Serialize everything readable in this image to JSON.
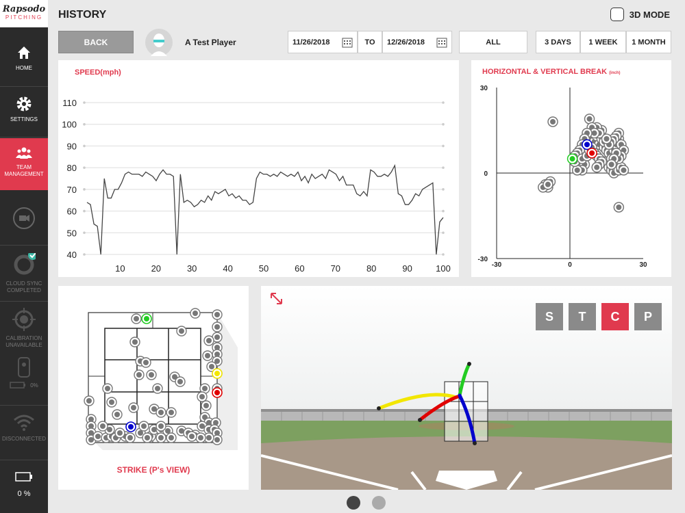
{
  "sidebar": {
    "logo_brand": "Rapsodo",
    "logo_sub": "PITCHING",
    "items": [
      {
        "label": "HOME"
      },
      {
        "label": "SETTINGS"
      },
      {
        "label": "TEAM MANAGEMENT"
      },
      {
        "label": ""
      },
      {
        "label": "CLOUD SYNC COMPLETED"
      },
      {
        "label": "CALIBRATION UNAVAILABLE"
      },
      {
        "label": "0%"
      },
      {
        "label": "DISCONNECTED"
      },
      {
        "label": "0 %"
      }
    ]
  },
  "header": {
    "title": "HISTORY",
    "mode_label": "3D MODE"
  },
  "controls": {
    "back": "BACK",
    "player": "A Test Player",
    "date_from": "11/26/2018",
    "to": "TO",
    "date_to": "12/26/2018",
    "all": "ALL",
    "range_3d": "3 DAYS",
    "range_1w": "1 WEEK",
    "range_1m": "1 MONTH"
  },
  "speed_panel": {
    "title": "SPEED(mph)"
  },
  "break_panel": {
    "title": "HORIZONTAL & VERTICAL BREAK",
    "title_unit": "(inch)"
  },
  "strike_panel": {
    "title": "STRIKE (P's VIEW)"
  },
  "view_buttons": {
    "s": "S",
    "t": "T",
    "c": "C",
    "p": "P"
  },
  "colors": {
    "accent": "#e03a4e",
    "yellow": "#f2e600",
    "red": "#e00000",
    "green": "#22cc22",
    "blue": "#0000cc"
  },
  "chart_data": [
    {
      "type": "line",
      "title": "SPEED(mph)",
      "ylim": [
        40,
        110
      ],
      "xlim": [
        0,
        100
      ],
      "yticks": [
        40,
        50,
        60,
        70,
        80,
        90,
        100,
        110
      ],
      "xticks": [
        10,
        20,
        30,
        40,
        50,
        60,
        70,
        80,
        90,
        100
      ],
      "series": [
        {
          "values": [
            64,
            63,
            54,
            53,
            40,
            75,
            66,
            66,
            70,
            70,
            73,
            77,
            78,
            77,
            77,
            77,
            76,
            78,
            77,
            76,
            74,
            77,
            79,
            77,
            77,
            76,
            40,
            77,
            64,
            65,
            64,
            62,
            63,
            65,
            64,
            67,
            65,
            69,
            68,
            69,
            70,
            67,
            68,
            66,
            67,
            65,
            65,
            63,
            64,
            75,
            78,
            77,
            77,
            76,
            77,
            76,
            78,
            77,
            76,
            77,
            76,
            78,
            74,
            76,
            73,
            77,
            75,
            76,
            77,
            75,
            79,
            78,
            77,
            74,
            76,
            72,
            72,
            72,
            68,
            67,
            69,
            67,
            79,
            78,
            76,
            76,
            77,
            76,
            78,
            81,
            68,
            67,
            63,
            63,
            65,
            68,
            67,
            70,
            71,
            72,
            73,
            40,
            55,
            57
          ]
        }
      ]
    },
    {
      "type": "scatter",
      "title": "HORIZONTAL & VERTICAL BREAK",
      "xlim": [
        -30,
        30
      ],
      "ylim": [
        -30,
        30
      ],
      "xticks": [
        -30,
        0,
        30
      ],
      "yticks": [
        -30,
        0,
        30
      ],
      "series": [
        {
          "points": [
            [
              -7,
              18
            ],
            [
              -10,
              -4
            ],
            [
              -9,
              -5
            ],
            [
              -11,
              -5
            ],
            [
              -8,
              -3
            ],
            [
              -9,
              -4
            ],
            [
              8,
              19
            ],
            [
              8,
              13
            ],
            [
              10,
              11
            ],
            [
              11,
              13
            ],
            [
              12,
              10
            ],
            [
              13,
              12
            ],
            [
              14,
              9
            ],
            [
              14,
              11
            ],
            [
              15,
              8
            ],
            [
              13,
              15
            ],
            [
              11,
              16
            ],
            [
              12,
              14
            ],
            [
              9,
              16
            ],
            [
              10,
              14
            ],
            [
              7,
              14
            ],
            [
              6,
              12
            ],
            [
              5,
              10
            ],
            [
              4,
              8
            ],
            [
              3,
              7
            ],
            [
              2,
              6
            ],
            [
              4,
              4
            ],
            [
              6,
              3
            ],
            [
              5,
              1
            ],
            [
              3,
              1
            ],
            [
              2,
              4
            ],
            [
              5,
              5
            ],
            [
              7,
              6
            ],
            [
              8,
              8
            ],
            [
              9,
              9
            ],
            [
              10,
              7
            ],
            [
              11,
              6
            ],
            [
              12,
              5
            ],
            [
              14,
              4
            ],
            [
              16,
              2
            ],
            [
              17,
              1
            ],
            [
              18,
              0
            ],
            [
              19,
              2
            ],
            [
              20,
              1
            ],
            [
              21,
              2
            ],
            [
              22,
              1
            ],
            [
              16,
              7
            ],
            [
              17,
              5
            ],
            [
              18,
              8
            ],
            [
              19,
              10
            ],
            [
              20,
              12
            ],
            [
              21,
              10
            ],
            [
              20,
              14
            ],
            [
              19,
              13
            ],
            [
              18,
              12
            ],
            [
              17,
              11
            ],
            [
              16,
              10
            ],
            [
              15,
              12
            ],
            [
              22,
              8
            ],
            [
              21,
              6
            ],
            [
              20,
              5
            ],
            [
              19,
              7
            ],
            [
              18,
              5
            ],
            [
              17,
              3
            ],
            [
              13,
              4
            ],
            [
              12,
              3
            ],
            [
              11,
              2
            ],
            [
              20,
              -12
            ]
          ],
          "color": "#777"
        },
        {
          "points": [
            [
              7,
              10
            ]
          ],
          "color": "#0000cc"
        },
        {
          "points": [
            [
              9,
              7
            ]
          ],
          "color": "#e00000"
        },
        {
          "points": [
            [
              1,
              5
            ]
          ],
          "color": "#22cc22"
        }
      ]
    }
  ]
}
